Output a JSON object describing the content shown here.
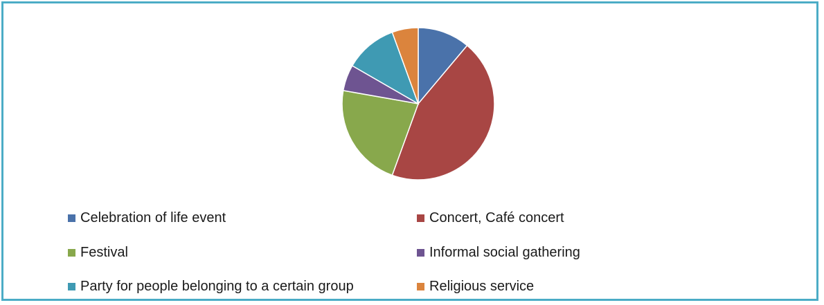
{
  "chart_data": {
    "type": "pie",
    "title": "",
    "categories": [
      "Celebration of life event",
      "Concert, Café concert",
      "Festival",
      "Informal social gathering",
      "Party for people belonging to a certain group",
      "Religious service"
    ],
    "values": [
      11,
      44,
      22,
      5.5,
      11,
      5.5
    ],
    "colors": [
      "#4a72aa",
      "#a84644",
      "#88a84c",
      "#6e5491",
      "#3f9ab3",
      "#db843d"
    ],
    "start_angle_deg": 0,
    "direction": "clockwise",
    "legend_position": "bottom",
    "legend_columns": 2
  }
}
